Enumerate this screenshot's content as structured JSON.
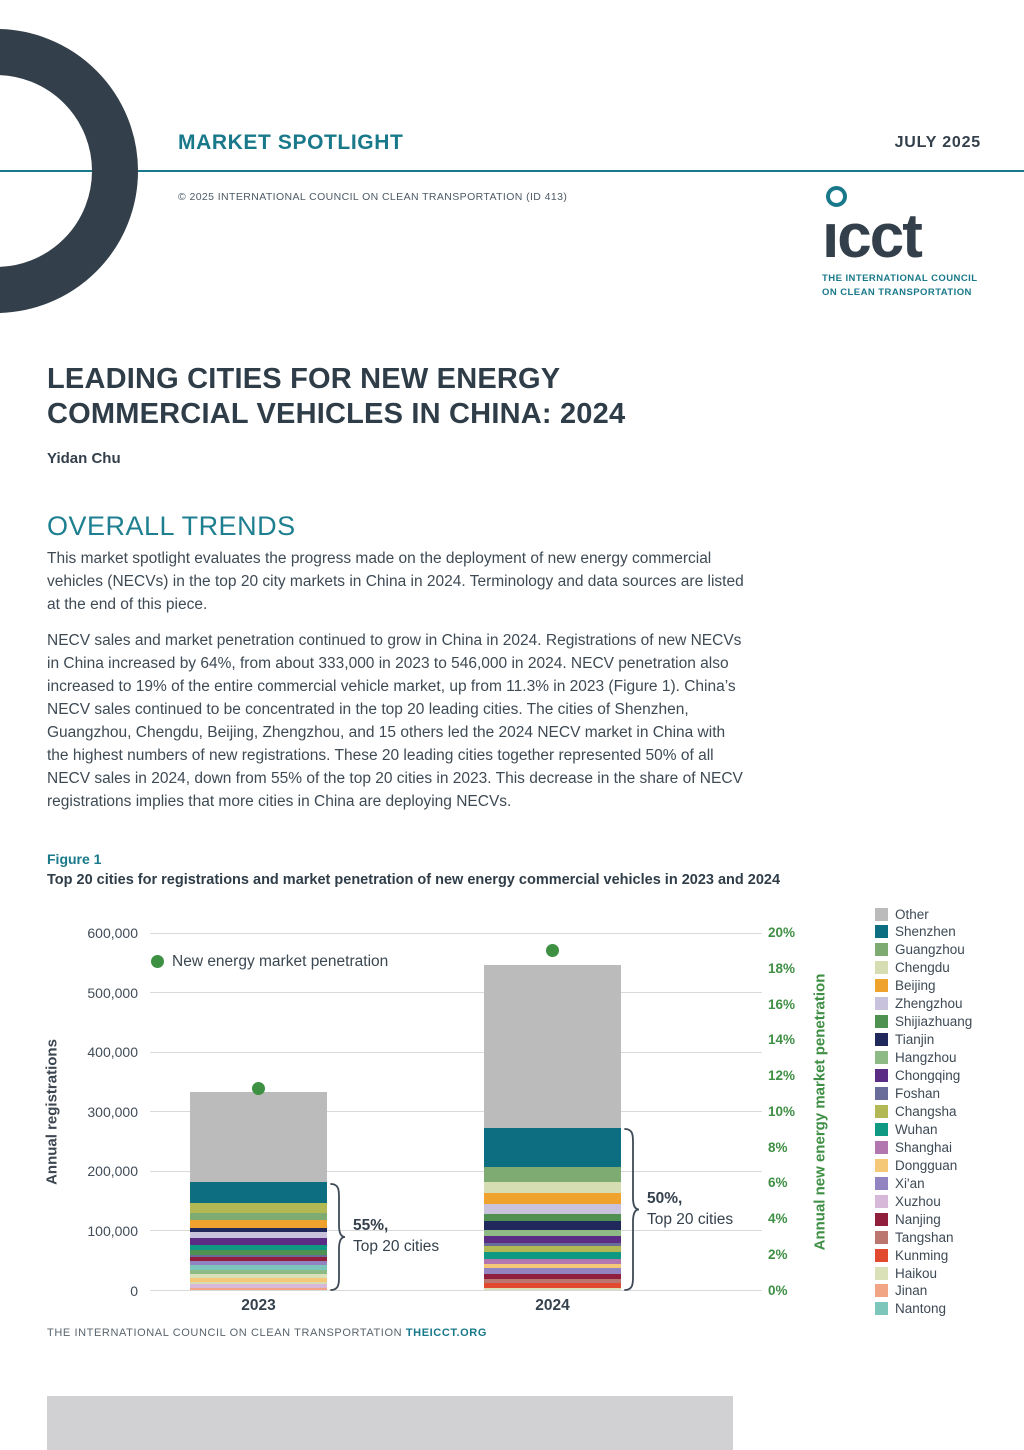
{
  "header": {
    "kicker": "MARKET SPOTLIGHT",
    "date": "JULY 2025",
    "copyright": "© 2025 INTERNATIONAL COUNCIL ON CLEAN TRANSPORTATION (ID 413)",
    "accent_color": "#19798a",
    "dark_color": "#333f4a",
    "logo": {
      "wordmark": "ıcct",
      "tagline_line1": "THE INTERNATIONAL COUNCIL",
      "tagline_line2": "ON CLEAN TRANSPORTATION"
    }
  },
  "article": {
    "title_line1": "LEADING CITIES FOR NEW ENERGY",
    "title_line2": "COMMERCIAL VEHICLES IN CHINA: 2024",
    "author": "Yidan Chu",
    "section_heading": "OVERALL TRENDS",
    "paragraph1": "This market spotlight evaluates the progress made on the deployment of new energy commercial vehicles (NECVs) in the top 20 city markets in China in 2024. Terminology and data sources are listed at the end of this piece.",
    "paragraph2": "NECV sales and market penetration continued to grow in China in 2024. Registrations of new NECVs in China increased by 64%, from about 333,000 in 2023 to 546,000 in 2024. NECV penetration also increased to 19% of the entire commercial vehicle market, up from 11.3% in 2023 (Figure 1). China’s NECV sales continued to be concentrated in the top 20 leading cities. The cities of Shenzhen, Guangzhou, Chengdu, Beijing, Zhengzhou, and 15 others led the 2024 NECV market in China with the highest numbers of new registrations. These 20 leading cities together represented 50% of all NECV sales in 2024, down from 55% of the top 20 cities in 2023. This decrease in the share of NECV registrations implies that more cities in China are deploying NECVs.",
    "figure_label": "Figure 1",
    "figure_title": "Top 20 cities for registrations and market penetration of new energy commercial vehicles in 2023 and 2024"
  },
  "footer": {
    "text": "THE INTERNATIONAL COUNCIL ON CLEAN TRANSPORTATION ",
    "link": "THEICCT.ORG"
  },
  "chart_data": {
    "type": "bar",
    "stacked": true,
    "categories": [
      "2023",
      "2024"
    ],
    "title": "Top 20 cities for registrations and market penetration of new energy commercial vehicles in 2023 and 2024",
    "xlabel": "",
    "ylabel_left": "Annual registrations",
    "ylabel_right": "Annual new energy market penetration",
    "ylim_left": [
      0,
      600000
    ],
    "ytick_step_left": 100000,
    "ylim_right_pct": [
      0,
      20
    ],
    "ytick_step_right_pct": 2,
    "grid": true,
    "legend_position": "right",
    "totals": {
      "2023": 333000,
      "2024": 546000
    },
    "top20_share": {
      "2023": "55%",
      "2024": "50%"
    },
    "dot_series": {
      "name": "New energy market penetration",
      "values_pct": {
        "2023": 11.3,
        "2024": 19
      },
      "color": "#3e9043"
    },
    "annotations": [
      {
        "year": "2023",
        "bold": "55%,",
        "text": "Top 20 cities"
      },
      {
        "year": "2024",
        "bold": "50%,",
        "text": "Top 20 cities"
      }
    ],
    "legend": [
      {
        "label": "Other",
        "color": "#bcbbbb"
      },
      {
        "label": "Shenzhen",
        "color": "#0c6e80"
      },
      {
        "label": "Guangzhou",
        "color": "#7dab72"
      },
      {
        "label": "Chengdu",
        "color": "#d7ddb2"
      },
      {
        "label": "Beijing",
        "color": "#efa22e"
      },
      {
        "label": "Zhengzhou",
        "color": "#c9c2dc"
      },
      {
        "label": "Shijiazhuang",
        "color": "#4f9151"
      },
      {
        "label": "Tianjin",
        "color": "#21295c"
      },
      {
        "label": "Hangzhou",
        "color": "#8eba85"
      },
      {
        "label": "Chongqing",
        "color": "#5b2c84"
      },
      {
        "label": "Foshan",
        "color": "#696c99"
      },
      {
        "label": "Changsha",
        "color": "#b1b854"
      },
      {
        "label": "Wuhan",
        "color": "#0f9882"
      },
      {
        "label": "Shanghai",
        "color": "#b277ae"
      },
      {
        "label": "Dongguan",
        "color": "#f5c878"
      },
      {
        "label": "Xi'an",
        "color": "#9184c1"
      },
      {
        "label": "Xuzhou",
        "color": "#d8b8d8"
      },
      {
        "label": "Nanjing",
        "color": "#8f1f3c"
      },
      {
        "label": "Tangshan",
        "color": "#bc7670"
      },
      {
        "label": "Kunming",
        "color": "#e14a2f"
      },
      {
        "label": "Haikou",
        "color": "#dae0b8"
      },
      {
        "label": "Jinan",
        "color": "#f2a584"
      },
      {
        "label": "Nantong",
        "color": "#7cc6bb"
      }
    ],
    "bars": {
      "2023": {
        "segments_top_to_bottom": [
          {
            "name": "Other",
            "value": 151500
          },
          {
            "name": "Shenzhen",
            "value": 35000
          },
          {
            "name": "Changsha",
            "value": 17000
          },
          {
            "name": "Guangzhou",
            "value": 12000
          },
          {
            "name": "Beijing",
            "value": 13000
          },
          {
            "name": "Tianjin",
            "value": 7000
          },
          {
            "name": "Zhengzhou",
            "value": 9500
          },
          {
            "name": "Chongqing",
            "value": 11500
          },
          {
            "name": "Wuhan",
            "value": 8500
          },
          {
            "name": "Shijiazhuang",
            "value": 8500
          },
          {
            "name": "Foshan",
            "value": 3500
          },
          {
            "name": "Nanjing",
            "value": 7000
          },
          {
            "name": "Xi'an",
            "value": 6000
          },
          {
            "name": "Nantong",
            "value": 8500
          },
          {
            "name": "Hangzhou",
            "value": 6500
          },
          {
            "name": "Haikou",
            "value": 7000
          },
          {
            "name": "Dongguan",
            "value": 6000
          },
          {
            "name": "Chengdu",
            "value": 4500
          },
          {
            "name": "Xuzhou",
            "value": 5500
          },
          {
            "name": "Jinan",
            "value": 5000
          }
        ]
      },
      "2024": {
        "segments_top_to_bottom": [
          {
            "name": "Other",
            "value": 273000
          },
          {
            "name": "Shenzhen",
            "value": 66000
          },
          {
            "name": "Guangzhou",
            "value": 25000
          },
          {
            "name": "Chengdu",
            "value": 19000
          },
          {
            "name": "Beijing",
            "value": 17000
          },
          {
            "name": "Zhengzhou",
            "value": 17000
          },
          {
            "name": "Shijiazhuang",
            "value": 13000
          },
          {
            "name": "Tianjin",
            "value": 14000
          },
          {
            "name": "Hangzhou",
            "value": 10000
          },
          {
            "name": "Chongqing",
            "value": 13000
          },
          {
            "name": "Foshan",
            "value": 5000
          },
          {
            "name": "Changsha",
            "value": 10000
          },
          {
            "name": "Wuhan",
            "value": 11000
          },
          {
            "name": "Shanghai",
            "value": 8000
          },
          {
            "name": "Dongguan",
            "value": 8000
          },
          {
            "name": "Xi'an",
            "value": 10000
          },
          {
            "name": "Nanjing",
            "value": 8000
          },
          {
            "name": "Tangshan",
            "value": 6000
          },
          {
            "name": "Kunming",
            "value": 9000
          },
          {
            "name": "Haikou",
            "value": 4000
          }
        ]
      }
    }
  }
}
